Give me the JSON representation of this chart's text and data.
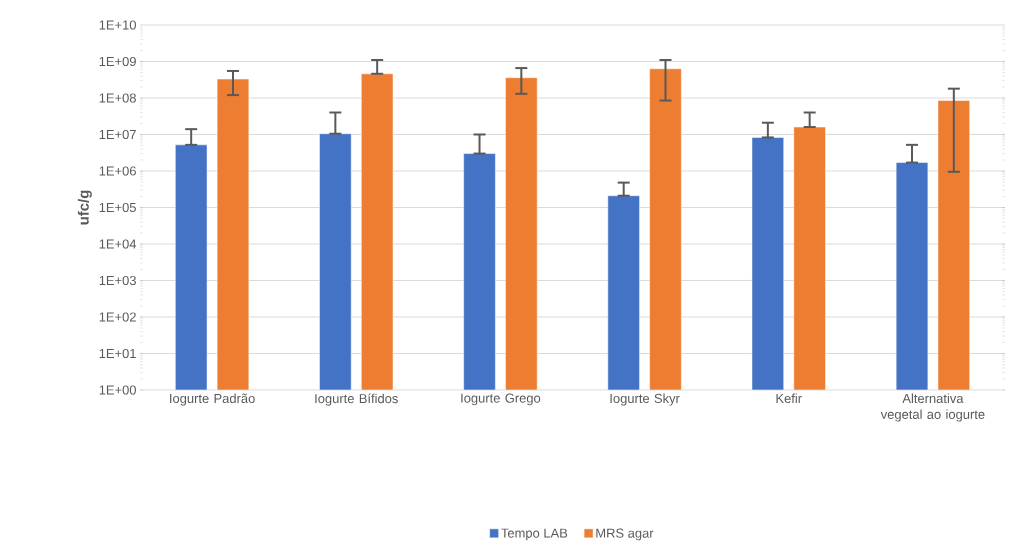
{
  "chart_data": {
    "type": "bar",
    "ylabel": "ufc/g",
    "log": true,
    "grid": "y",
    "legend": "bottom",
    "categories": [
      "Iogurte Padrão",
      "Iogurte Bífidos",
      "Iogurte Grego",
      "Iogurte Skyr",
      "Kefir",
      "Alternativa vegetal ao iogurte"
    ],
    "ylim": [
      1,
      10000000000
    ],
    "yticks": [
      {
        "value": 1,
        "label": "1E+00"
      },
      {
        "value": 10,
        "label": "1E+01"
      },
      {
        "value": 100,
        "label": "1E+02"
      },
      {
        "value": 1000,
        "label": "1E+03"
      },
      {
        "value": 10000,
        "label": "1E+04"
      },
      {
        "value": 100000,
        "label": "1E+05"
      },
      {
        "value": 1000000,
        "label": "1E+06"
      },
      {
        "value": 10000000,
        "label": "1E+07"
      },
      {
        "value": 100000000,
        "label": "1E+08"
      },
      {
        "value": 1000000000,
        "label": "1E+09"
      },
      {
        "value": 10000000000,
        "label": "1E+10"
      }
    ],
    "series": [
      {
        "name": "Tempo LAB",
        "color": "#4472c4",
        "values": [
          5200000,
          10500000,
          3000000,
          210000,
          8300000,
          1700000
        ],
        "errors": [
          [
            5200000,
            14000000
          ],
          [
            10500000,
            40000000
          ],
          [
            3000000,
            10000000
          ],
          [
            210000,
            480000
          ],
          [
            8300000,
            21000000
          ],
          [
            1700000,
            5200000
          ]
        ]
      },
      {
        "name": "MRS agar",
        "color": "#ed7d31",
        "values": [
          330000000,
          460000000,
          360000000,
          630000000,
          16000000,
          85000000
        ],
        "errors": [
          [
            120000000,
            550000000
          ],
          [
            460000000,
            1100000000
          ],
          [
            130000000,
            660000000
          ],
          [
            85000000,
            1100000000
          ],
          [
            16000000,
            40000000
          ],
          [
            950000,
            180000000
          ]
        ]
      }
    ]
  }
}
